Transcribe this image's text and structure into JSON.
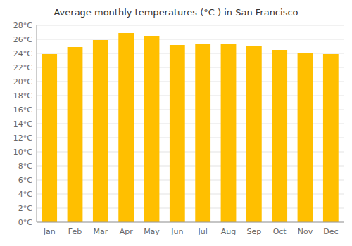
{
  "chart_data": {
    "type": "bar",
    "title": "Average monthly temperatures (°C ) in San Francisco",
    "categories": [
      "Jan",
      "Feb",
      "Mar",
      "Apr",
      "May",
      "Jun",
      "Jul",
      "Aug",
      "Sep",
      "Oct",
      "Nov",
      "Dec"
    ],
    "values": [
      23.9,
      24.9,
      25.9,
      26.9,
      26.5,
      25.2,
      25.4,
      25.3,
      25.0,
      24.5,
      24.1,
      23.9
    ],
    "color": "#FFBF00",
    "ylim": [
      0,
      28
    ],
    "yticks": [
      {
        "value": 0,
        "label": "0°C"
      },
      {
        "value": 2,
        "label": "2°C"
      },
      {
        "value": 4,
        "label": "4°C"
      },
      {
        "value": 6,
        "label": "6°C"
      },
      {
        "value": 8,
        "label": "8°C"
      },
      {
        "value": 10,
        "label": "10°C"
      },
      {
        "value": 12,
        "label": "12°C"
      },
      {
        "value": 14,
        "label": "14°C"
      },
      {
        "value": 16,
        "label": "16°C"
      },
      {
        "value": 18,
        "label": "18°C"
      },
      {
        "value": 20,
        "label": "20°C"
      },
      {
        "value": 22,
        "label": "22°C"
      },
      {
        "value": 24,
        "label": "24°C"
      },
      {
        "value": 26,
        "label": "26°C"
      },
      {
        "value": 28,
        "label": "28°C"
      }
    ],
    "grid": true
  }
}
